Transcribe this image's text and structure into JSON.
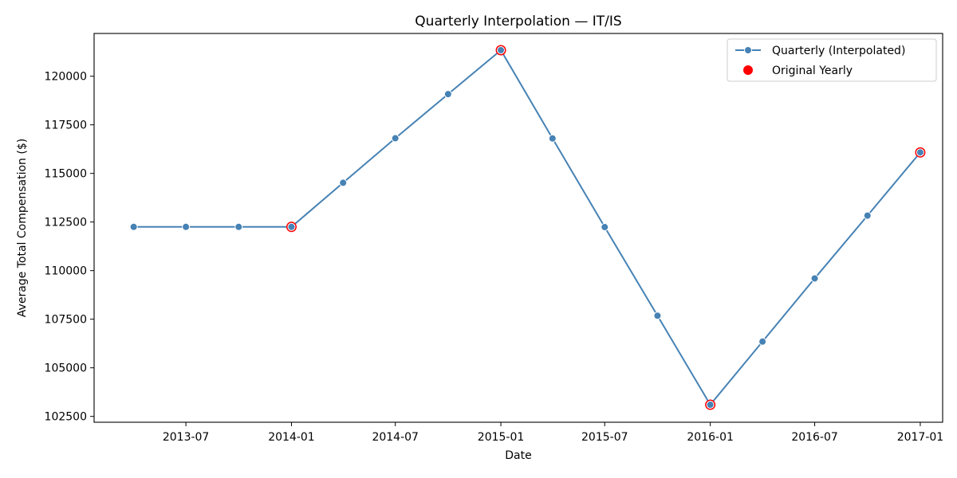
{
  "chart_data": {
    "type": "line",
    "title": "Quarterly Interpolation — IT/IS",
    "xlabel": "Date",
    "ylabel": "Average Total Compensation ($)",
    "x_tick_labels": [
      "2013-07",
      "2014-01",
      "2014-07",
      "2015-01",
      "2015-07",
      "2016-01",
      "2016-07",
      "2017-01"
    ],
    "y_tick_labels": [
      "102500",
      "105000",
      "107500",
      "110000",
      "112500",
      "115000",
      "117500",
      "120000"
    ],
    "x_range": [
      "2013-01-22",
      "2017-02-09"
    ],
    "y_range": [
      102200,
      122200
    ],
    "grid": false,
    "legend_position": "top-right",
    "series": [
      {
        "name": "Quarterly (Interpolated)",
        "color": "#4682b4",
        "style": "line-with-markers",
        "points": [
          {
            "x": "2013-04-01",
            "y": 112250
          },
          {
            "x": "2013-07-01",
            "y": 112250
          },
          {
            "x": "2013-10-01",
            "y": 112250
          },
          {
            "x": "2014-01-01",
            "y": 112250
          },
          {
            "x": "2014-04-01",
            "y": 114520
          },
          {
            "x": "2014-07-01",
            "y": 116810
          },
          {
            "x": "2014-10-01",
            "y": 119080
          },
          {
            "x": "2015-01-01",
            "y": 121340
          },
          {
            "x": "2015-04-01",
            "y": 116800
          },
          {
            "x": "2015-07-01",
            "y": 112240
          },
          {
            "x": "2015-10-01",
            "y": 107680
          },
          {
            "x": "2016-01-01",
            "y": 103100
          },
          {
            "x": "2016-04-01",
            "y": 106350
          },
          {
            "x": "2016-07-01",
            "y": 109600
          },
          {
            "x": "2016-10-01",
            "y": 112830
          },
          {
            "x": "2017-01-01",
            "y": 116080
          }
        ]
      },
      {
        "name": "Original Yearly",
        "color": "#ff0000",
        "style": "markers",
        "points": [
          {
            "x": "2014-01-01",
            "y": 112250
          },
          {
            "x": "2015-01-01",
            "y": 121340
          },
          {
            "x": "2016-01-01",
            "y": 103100
          },
          {
            "x": "2017-01-01",
            "y": 116080
          }
        ]
      }
    ]
  }
}
